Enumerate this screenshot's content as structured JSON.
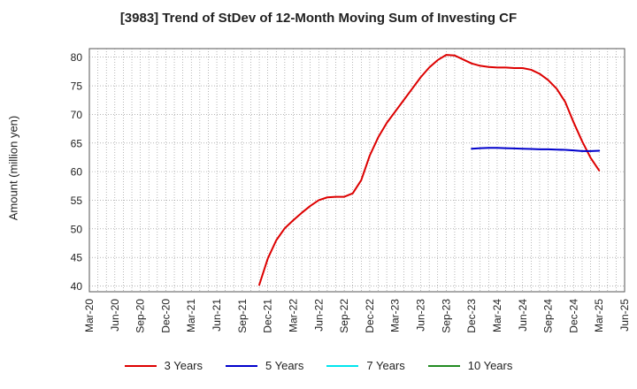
{
  "chart_data": {
    "type": "line",
    "title": "[3983]  Trend of StDev of 12-Month Moving Sum of Investing CF",
    "xlabel": "",
    "ylabel": "Amount (million yen)",
    "ylim": [
      39,
      81.5
    ],
    "yticks": [
      40,
      45,
      50,
      55,
      60,
      65,
      70,
      75,
      80
    ],
    "xticks": [
      "Mar-20",
      "Jun-20",
      "Sep-20",
      "Dec-20",
      "Mar-21",
      "Jun-21",
      "Sep-21",
      "Dec-21",
      "Mar-22",
      "Jun-22",
      "Sep-22",
      "Dec-22",
      "Mar-23",
      "Jun-23",
      "Sep-23",
      "Dec-23",
      "Mar-24",
      "Jun-24",
      "Sep-24",
      "Dec-24",
      "Mar-25",
      "Jun-25"
    ],
    "grid": true,
    "legend_position": "bottom",
    "series": [
      {
        "name": "3 Years",
        "color": "#dd0000",
        "x": [
          "Nov-21",
          "Dec-21",
          "Jan-22",
          "Feb-22",
          "Mar-22",
          "Apr-22",
          "May-22",
          "Jun-22",
          "Jul-22",
          "Aug-22",
          "Sep-22",
          "Oct-22",
          "Nov-22",
          "Dec-22",
          "Jan-23",
          "Feb-23",
          "Mar-23",
          "Apr-23",
          "May-23",
          "Jun-23",
          "Jul-23",
          "Aug-23",
          "Sep-23",
          "Oct-23",
          "Nov-23",
          "Dec-23",
          "Jan-24",
          "Feb-24",
          "Mar-24",
          "Apr-24",
          "May-24",
          "Jun-24",
          "Jul-24",
          "Aug-24",
          "Sep-24",
          "Oct-24",
          "Nov-24",
          "Dec-24",
          "Jan-25",
          "Feb-25",
          "Mar-25"
        ],
        "values": [
          40.2,
          44.8,
          48.0,
          50.1,
          51.5,
          52.8,
          54.0,
          55.0,
          55.5,
          55.6,
          55.6,
          56.2,
          58.5,
          62.8,
          66.0,
          68.5,
          70.5,
          72.5,
          74.5,
          76.5,
          78.2,
          79.5,
          80.4,
          80.3,
          79.6,
          78.9,
          78.5,
          78.3,
          78.2,
          78.2,
          78.1,
          78.1,
          77.8,
          77.1,
          76.0,
          74.5,
          72.2,
          68.6,
          65.3,
          62.4,
          60.2
        ]
      },
      {
        "name": "5 Years",
        "color": "#0000cc",
        "x": [
          "Dec-23",
          "Jan-24",
          "Feb-24",
          "Mar-24",
          "Apr-24",
          "May-24",
          "Jun-24",
          "Jul-24",
          "Aug-24",
          "Sep-24",
          "Oct-24",
          "Nov-24",
          "Dec-24",
          "Jan-25",
          "Feb-25",
          "Mar-25"
        ],
        "values": [
          64.0,
          64.1,
          64.15,
          64.15,
          64.1,
          64.05,
          64.0,
          63.95,
          63.9,
          63.9,
          63.85,
          63.8,
          63.7,
          63.6,
          63.6,
          63.65
        ]
      },
      {
        "name": "7 Years",
        "color": "#00e5ee",
        "x": [],
        "values": []
      },
      {
        "name": "10 Years",
        "color": "#228b22",
        "x": [],
        "values": []
      }
    ]
  }
}
